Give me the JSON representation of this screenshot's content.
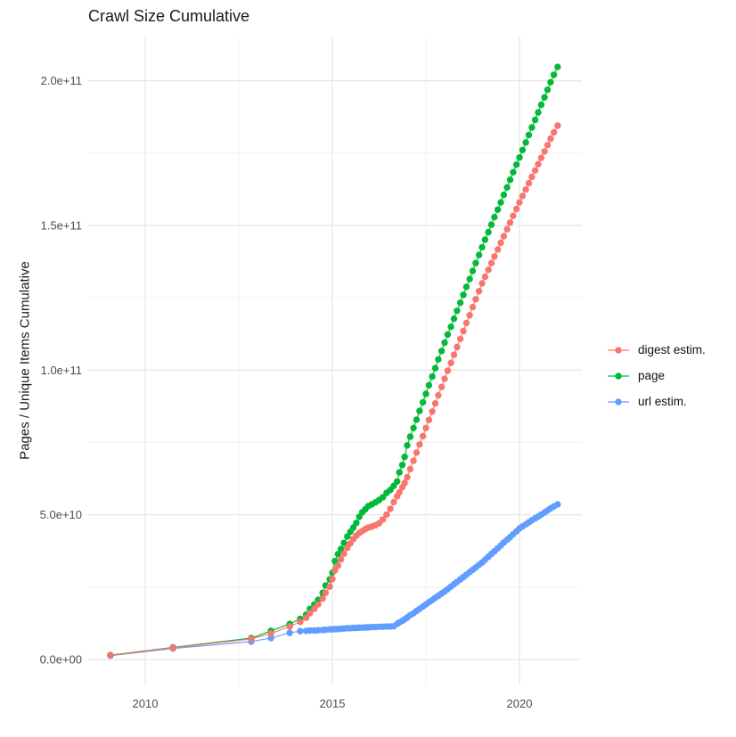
{
  "title": "Crawl Size Cumulative",
  "chart_data": {
    "type": "line",
    "title": "Crawl Size Cumulative",
    "xlabel": "",
    "ylabel": "Pages / Unique Items Cumulative",
    "values_unit": "1e9",
    "xlim": [
      2008.47,
      2021.65
    ],
    "ylim": [
      -9,
      215
    ],
    "grid": true,
    "legend_position": "right",
    "x_tick_labels": [
      "2010",
      "2015",
      "2020"
    ],
    "x_tick_values": [
      2010,
      2015,
      2020
    ],
    "x_minor_tick_values": [
      2012.5,
      2017.5
    ],
    "y_tick_labels": [
      "0.0e+00",
      "5.0e+10",
      "1.0e+11",
      "1.5e+11",
      "2.0e+11"
    ],
    "y_tick_values": [
      0,
      50,
      100,
      150,
      200
    ],
    "y_minor_tick_values": [
      25,
      75,
      125,
      175
    ],
    "series": [
      {
        "name": "digest estim.",
        "color": "#F8766D",
        "points": [
          [
            2009.07,
            1.4
          ],
          [
            2010.74,
            4.0
          ],
          [
            2012.83,
            7.1
          ],
          [
            2013.36,
            9.0
          ],
          [
            2013.86,
            11.4
          ],
          [
            2014.14,
            13.0
          ],
          [
            2014.3,
            14.4
          ],
          [
            2014.4,
            16.0
          ],
          [
            2014.52,
            17.5
          ],
          [
            2014.62,
            19.0
          ],
          [
            2014.74,
            21.0
          ],
          [
            2014.82,
            23.0
          ],
          [
            2014.93,
            25.2
          ],
          [
            2015.0,
            27.8
          ],
          [
            2015.07,
            30.8
          ],
          [
            2015.15,
            32.4
          ],
          [
            2015.23,
            34.6
          ],
          [
            2015.31,
            36.6
          ],
          [
            2015.4,
            38.6
          ],
          [
            2015.48,
            40.1
          ],
          [
            2015.56,
            41.6
          ],
          [
            2015.64,
            42.8
          ],
          [
            2015.72,
            43.7
          ],
          [
            2015.8,
            44.4
          ],
          [
            2015.88,
            45.1
          ],
          [
            2015.96,
            45.6
          ],
          [
            2016.05,
            45.9
          ],
          [
            2016.15,
            46.4
          ],
          [
            2016.25,
            47.1
          ],
          [
            2016.35,
            48.4
          ],
          [
            2016.45,
            50.1
          ],
          [
            2016.55,
            52.1
          ],
          [
            2016.64,
            54.4
          ],
          [
            2016.73,
            56.4
          ],
          [
            2016.79,
            57.8
          ],
          [
            2016.87,
            59.5
          ],
          [
            2016.93,
            61.0
          ],
          [
            2017.0,
            63.0
          ],
          [
            2017.08,
            65.8
          ],
          [
            2017.17,
            68.7
          ],
          [
            2017.25,
            71.5
          ],
          [
            2017.33,
            74.3
          ],
          [
            2017.42,
            77.2
          ],
          [
            2017.5,
            80.0
          ],
          [
            2017.58,
            82.8
          ],
          [
            2017.67,
            85.7
          ],
          [
            2017.75,
            88.5
          ],
          [
            2017.83,
            91.3
          ],
          [
            2017.92,
            94.2
          ],
          [
            2018.0,
            97.0
          ],
          [
            2018.08,
            99.8
          ],
          [
            2018.17,
            102.5
          ],
          [
            2018.25,
            105.3
          ],
          [
            2018.33,
            108.0
          ],
          [
            2018.42,
            110.8
          ],
          [
            2018.5,
            113.5
          ],
          [
            2018.58,
            116.3
          ],
          [
            2018.67,
            119.0
          ],
          [
            2018.75,
            121.8
          ],
          [
            2018.83,
            124.5
          ],
          [
            2018.92,
            127.3
          ],
          [
            2019.0,
            130.0
          ],
          [
            2019.08,
            132.3
          ],
          [
            2019.17,
            134.7
          ],
          [
            2019.25,
            137.0
          ],
          [
            2019.33,
            139.3
          ],
          [
            2019.42,
            141.7
          ],
          [
            2019.5,
            144.0
          ],
          [
            2019.58,
            146.3
          ],
          [
            2019.67,
            148.7
          ],
          [
            2019.75,
            151.0
          ],
          [
            2019.83,
            153.3
          ],
          [
            2019.92,
            155.7
          ],
          [
            2020.0,
            158.0
          ],
          [
            2020.08,
            160.2
          ],
          [
            2020.17,
            162.4
          ],
          [
            2020.25,
            164.6
          ],
          [
            2020.33,
            166.8
          ],
          [
            2020.42,
            169.0
          ],
          [
            2020.5,
            171.2
          ],
          [
            2020.58,
            173.4
          ],
          [
            2020.67,
            175.6
          ],
          [
            2020.75,
            177.8
          ],
          [
            2020.83,
            180.0
          ],
          [
            2020.92,
            182.2
          ],
          [
            2021.02,
            184.5
          ]
        ]
      },
      {
        "name": "page",
        "color": "#00BA38",
        "points": [
          [
            2009.07,
            1.5
          ],
          [
            2010.74,
            4.2
          ],
          [
            2012.83,
            7.4
          ],
          [
            2013.36,
            9.9
          ],
          [
            2013.86,
            12.3
          ],
          [
            2014.14,
            14.0
          ],
          [
            2014.3,
            15.5
          ],
          [
            2014.4,
            17.5
          ],
          [
            2014.52,
            19.0
          ],
          [
            2014.62,
            20.6
          ],
          [
            2014.74,
            23.0
          ],
          [
            2014.82,
            25.6
          ],
          [
            2014.93,
            27.7
          ],
          [
            2015.0,
            30.0
          ],
          [
            2015.07,
            34.0
          ],
          [
            2015.15,
            36.4
          ],
          [
            2015.23,
            38.2
          ],
          [
            2015.31,
            40.3
          ],
          [
            2015.4,
            42.5
          ],
          [
            2015.48,
            44.1
          ],
          [
            2015.56,
            45.6
          ],
          [
            2015.64,
            47.2
          ],
          [
            2015.72,
            49.3
          ],
          [
            2015.8,
            50.9
          ],
          [
            2015.88,
            51.9
          ],
          [
            2015.96,
            53.0
          ],
          [
            2016.05,
            53.6
          ],
          [
            2016.15,
            54.3
          ],
          [
            2016.25,
            55.1
          ],
          [
            2016.35,
            56.1
          ],
          [
            2016.45,
            57.6
          ],
          [
            2016.55,
            58.6
          ],
          [
            2016.64,
            60.0
          ],
          [
            2016.73,
            61.5
          ],
          [
            2016.79,
            64.7
          ],
          [
            2016.87,
            67.2
          ],
          [
            2016.93,
            70.0
          ],
          [
            2017.0,
            74.0
          ],
          [
            2017.08,
            77.0
          ],
          [
            2017.17,
            80.0
          ],
          [
            2017.25,
            82.9
          ],
          [
            2017.33,
            85.9
          ],
          [
            2017.42,
            88.9
          ],
          [
            2017.5,
            91.8
          ],
          [
            2017.58,
            94.8
          ],
          [
            2017.67,
            97.8
          ],
          [
            2017.75,
            100.7
          ],
          [
            2017.83,
            103.7
          ],
          [
            2017.92,
            106.6
          ],
          [
            2018.0,
            109.5
          ],
          [
            2018.08,
            112.3
          ],
          [
            2018.17,
            115.0
          ],
          [
            2018.25,
            117.8
          ],
          [
            2018.33,
            120.5
          ],
          [
            2018.42,
            123.3
          ],
          [
            2018.5,
            126.0
          ],
          [
            2018.58,
            128.8
          ],
          [
            2018.67,
            131.5
          ],
          [
            2018.75,
            134.3
          ],
          [
            2018.83,
            137.0
          ],
          [
            2018.92,
            139.8
          ],
          [
            2019.0,
            142.5
          ],
          [
            2019.08,
            145.1
          ],
          [
            2019.17,
            147.7
          ],
          [
            2019.25,
            150.3
          ],
          [
            2019.33,
            152.9
          ],
          [
            2019.42,
            155.5
          ],
          [
            2019.5,
            158.0
          ],
          [
            2019.58,
            160.6
          ],
          [
            2019.67,
            163.2
          ],
          [
            2019.75,
            165.8
          ],
          [
            2019.83,
            168.4
          ],
          [
            2019.92,
            171.0
          ],
          [
            2020.0,
            173.5
          ],
          [
            2020.08,
            176.1
          ],
          [
            2020.17,
            178.7
          ],
          [
            2020.25,
            181.3
          ],
          [
            2020.33,
            183.9
          ],
          [
            2020.42,
            186.5
          ],
          [
            2020.5,
            189.1
          ],
          [
            2020.58,
            191.7
          ],
          [
            2020.67,
            194.3
          ],
          [
            2020.75,
            196.9
          ],
          [
            2020.83,
            199.5
          ],
          [
            2020.92,
            202.1
          ],
          [
            2021.02,
            204.8
          ]
        ]
      },
      {
        "name": "url estim.",
        "color": "#619CFF",
        "points": [
          [
            2009.07,
            1.3
          ],
          [
            2010.74,
            3.8
          ],
          [
            2012.83,
            6.2
          ],
          [
            2013.36,
            7.4
          ],
          [
            2013.86,
            9.2
          ],
          [
            2014.14,
            9.8
          ],
          [
            2014.3,
            9.9
          ],
          [
            2014.4,
            10.0
          ],
          [
            2014.52,
            10.0
          ],
          [
            2014.62,
            10.1
          ],
          [
            2014.74,
            10.2
          ],
          [
            2014.82,
            10.3
          ],
          [
            2014.93,
            10.4
          ],
          [
            2015.0,
            10.4
          ],
          [
            2015.07,
            10.5
          ],
          [
            2015.15,
            10.5
          ],
          [
            2015.23,
            10.6
          ],
          [
            2015.31,
            10.7
          ],
          [
            2015.4,
            10.8
          ],
          [
            2015.48,
            10.8
          ],
          [
            2015.56,
            10.9
          ],
          [
            2015.64,
            10.9
          ],
          [
            2015.72,
            11.0
          ],
          [
            2015.8,
            11.0
          ],
          [
            2015.88,
            11.1
          ],
          [
            2015.96,
            11.1
          ],
          [
            2016.05,
            11.2
          ],
          [
            2016.15,
            11.2
          ],
          [
            2016.25,
            11.3
          ],
          [
            2016.35,
            11.3
          ],
          [
            2016.45,
            11.4
          ],
          [
            2016.55,
            11.4
          ],
          [
            2016.64,
            11.5
          ],
          [
            2016.73,
            12.3
          ],
          [
            2016.79,
            12.8
          ],
          [
            2016.87,
            13.3
          ],
          [
            2016.93,
            13.9
          ],
          [
            2017.0,
            14.5
          ],
          [
            2017.08,
            15.3
          ],
          [
            2017.17,
            16.0
          ],
          [
            2017.25,
            16.8
          ],
          [
            2017.33,
            17.5
          ],
          [
            2017.42,
            18.3
          ],
          [
            2017.5,
            19.0
          ],
          [
            2017.58,
            19.8
          ],
          [
            2017.67,
            20.5
          ],
          [
            2017.75,
            21.3
          ],
          [
            2017.83,
            22.0
          ],
          [
            2017.92,
            22.8
          ],
          [
            2018.0,
            23.5
          ],
          [
            2018.08,
            24.3
          ],
          [
            2018.17,
            25.2
          ],
          [
            2018.25,
            26.0
          ],
          [
            2018.33,
            26.8
          ],
          [
            2018.42,
            27.7
          ],
          [
            2018.5,
            28.5
          ],
          [
            2018.58,
            29.3
          ],
          [
            2018.67,
            30.2
          ],
          [
            2018.75,
            31.0
          ],
          [
            2018.83,
            31.8
          ],
          [
            2018.92,
            32.7
          ],
          [
            2019.0,
            33.5
          ],
          [
            2019.08,
            34.5
          ],
          [
            2019.17,
            35.5
          ],
          [
            2019.25,
            36.5
          ],
          [
            2019.33,
            37.4
          ],
          [
            2019.42,
            38.4
          ],
          [
            2019.5,
            39.4
          ],
          [
            2019.58,
            40.4
          ],
          [
            2019.67,
            41.4
          ],
          [
            2019.75,
            42.3
          ],
          [
            2019.83,
            43.3
          ],
          [
            2019.92,
            44.3
          ],
          [
            2020.0,
            45.3
          ],
          [
            2020.08,
            46.0
          ],
          [
            2020.17,
            46.7
          ],
          [
            2020.25,
            47.4
          ],
          [
            2020.33,
            48.1
          ],
          [
            2020.42,
            48.8
          ],
          [
            2020.5,
            49.4
          ],
          [
            2020.58,
            50.1
          ],
          [
            2020.67,
            50.8
          ],
          [
            2020.75,
            51.5
          ],
          [
            2020.83,
            52.2
          ],
          [
            2020.92,
            52.9
          ],
          [
            2021.02,
            53.6
          ]
        ]
      }
    ]
  }
}
